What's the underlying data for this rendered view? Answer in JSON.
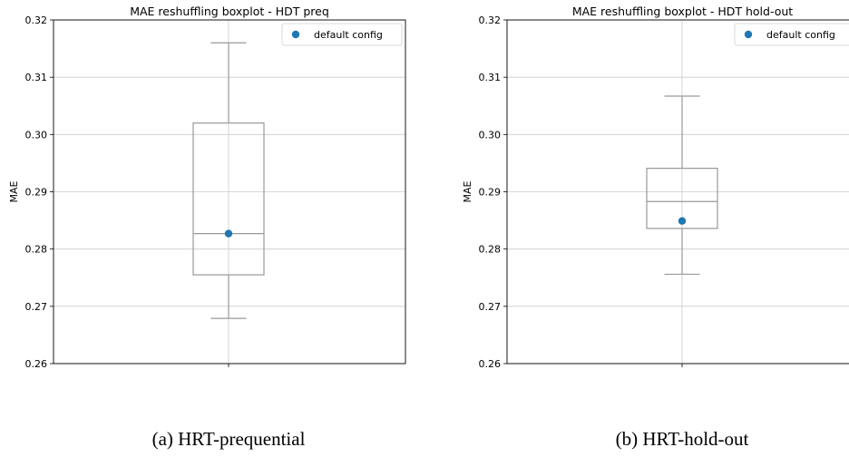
{
  "chart_data": [
    {
      "type": "box",
      "title": "MAE reshuffling boxplot - HDT preq",
      "ylabel": "MAE",
      "ylim": [
        0.26,
        0.32
      ],
      "yticks": [
        "0.26",
        "0.27",
        "0.28",
        "0.29",
        "0.30",
        "0.31",
        "0.32"
      ],
      "grid": true,
      "legend": {
        "entries": [
          "default config"
        ],
        "placement": "top-right"
      },
      "box": {
        "whisker_low": 0.2679,
        "q1": 0.2755,
        "median": 0.2827,
        "q3": 0.302,
        "whisker_high": 0.316
      },
      "default_config": 0.2827,
      "caption": "(a) HRT-prequential",
      "colors": {
        "box": "#999999",
        "grid": "#cccccc",
        "marker": "#1f77b4"
      }
    },
    {
      "type": "box",
      "title": "MAE reshuffling boxplot - HDT hold-out",
      "ylabel": "MAE",
      "ylim": [
        0.26,
        0.32
      ],
      "yticks": [
        "0.26",
        "0.27",
        "0.28",
        "0.29",
        "0.30",
        "0.31",
        "0.32"
      ],
      "grid": true,
      "legend": {
        "entries": [
          "default config"
        ],
        "placement": "top-right"
      },
      "box": {
        "whisker_low": 0.2756,
        "q1": 0.2836,
        "median": 0.2883,
        "q3": 0.2941,
        "whisker_high": 0.3067
      },
      "default_config": 0.2849,
      "caption": "(b) HRT-hold-out",
      "colors": {
        "box": "#999999",
        "grid": "#cccccc",
        "marker": "#1f77b4"
      }
    }
  ]
}
